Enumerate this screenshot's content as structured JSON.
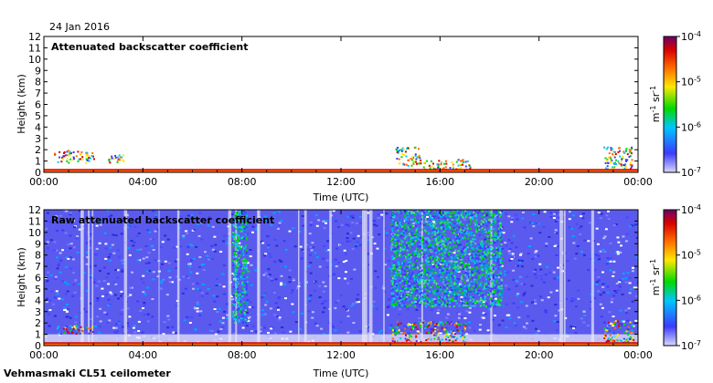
{
  "date_label": "24 Jan 2016",
  "footer_label": "Vehmasmaki CL51 ceilometer",
  "colorbar": {
    "ticks": [
      "10",
      "10",
      "10",
      "10"
    ],
    "exponents": [
      "-4",
      "-5",
      "-6",
      "-7"
    ],
    "unit_base": "m",
    "unit_exp1": "-1",
    "unit_mid": " sr",
    "unit_exp2": "-1",
    "stops": [
      "#d8d8ff",
      "#3b3bff",
      "#00c6ff",
      "#00d900",
      "#ffe800",
      "#ff6a00",
      "#d80000",
      "#6a006a"
    ]
  },
  "chart_data": [
    {
      "type": "heatmap",
      "title": "Attenuated backscatter coefficient",
      "xlabel": "Time (UTC)",
      "ylabel": "Height (km)",
      "x_ticks": [
        "00:00",
        "04:00",
        "08:00",
        "12:00",
        "16:00",
        "20:00",
        "00:00"
      ],
      "xlim_hours": [
        0,
        24
      ],
      "y_ticks": [
        0,
        1,
        2,
        3,
        4,
        5,
        6,
        7,
        8,
        9,
        10,
        11,
        12
      ],
      "ylim_km": [
        0,
        12
      ],
      "color_scale": "log",
      "clim": [
        1e-07,
        0.0001
      ],
      "features": [
        {
          "t0": 0.4,
          "t1": 2.0,
          "h0": 0.9,
          "h1": 2.0,
          "level": "cloud"
        },
        {
          "t0": 2.4,
          "t1": 3.2,
          "h0": 0.9,
          "h1": 1.6,
          "level": "cloud"
        },
        {
          "t0": 14.2,
          "t1": 15.2,
          "h0": 0.5,
          "h1": 2.3,
          "level": "cloud"
        },
        {
          "t0": 15.3,
          "t1": 17.2,
          "h0": 0.3,
          "h1": 1.2,
          "level": "cloud"
        },
        {
          "t0": 22.6,
          "t1": 23.8,
          "h0": 0.2,
          "h1": 2.3,
          "level": "cloud"
        }
      ]
    },
    {
      "type": "heatmap",
      "title": "Raw attenuated backscatter coefficient",
      "xlabel": "Time (UTC)",
      "ylabel": "Height (km)",
      "x_ticks": [
        "00:00",
        "04:00",
        "08:00",
        "12:00",
        "16:00",
        "20:00",
        "00:00"
      ],
      "xlim_hours": [
        0,
        24
      ],
      "y_ticks": [
        0,
        1,
        2,
        3,
        4,
        5,
        6,
        7,
        8,
        9,
        10,
        11,
        12
      ],
      "ylim_km": [
        0,
        12
      ],
      "color_scale": "log",
      "clim": [
        1e-07,
        0.0001
      ],
      "features": [
        {
          "t0": 0.4,
          "t1": 2.0,
          "h0": 1.1,
          "h1": 1.9,
          "level": "cloud"
        },
        {
          "t0": 7.6,
          "t1": 8.2,
          "h0": 2.0,
          "h1": 12.0,
          "level": "noise-high"
        },
        {
          "t0": 14.0,
          "t1": 18.5,
          "h0": 3.5,
          "h1": 12.0,
          "level": "noise-high"
        },
        {
          "t0": 14.0,
          "t1": 17.0,
          "h0": 0.3,
          "h1": 2.2,
          "level": "cloud"
        },
        {
          "t0": 22.6,
          "t1": 23.8,
          "h0": 0.2,
          "h1": 2.3,
          "level": "cloud"
        }
      ]
    }
  ]
}
